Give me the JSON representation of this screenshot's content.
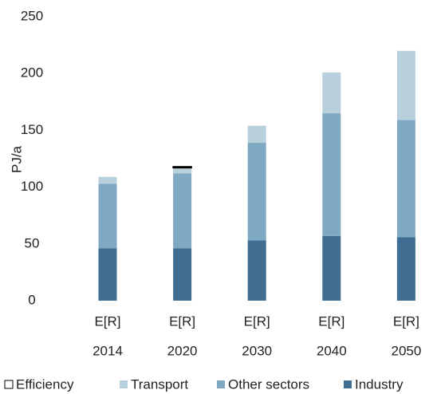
{
  "chart_data": {
    "type": "stacked_bar",
    "y_label": "PJ/a",
    "categories": [
      "2014",
      "2020",
      "2030",
      "2040",
      "2050"
    ],
    "category_sublabels": [
      "E[R]",
      "E[R]",
      "E[R]",
      "E[R]",
      "E[R]"
    ],
    "series": [
      {
        "name": "Industry",
        "color": "#3f6e92",
        "values": [
          46,
          46,
          53,
          57,
          56
        ]
      },
      {
        "name": "Other sectors",
        "color": "#7fa9c2",
        "values": [
          57,
          66,
          86,
          108,
          103
        ]
      },
      {
        "name": "Transport",
        "color": "#b8cfdc",
        "values": [
          6,
          5,
          15,
          36,
          61
        ]
      },
      {
        "name": "Efficiency",
        "color": "#ffffff",
        "values": [
          0,
          1,
          0,
          0,
          0
        ]
      }
    ],
    "ylim": [
      0,
      250
    ],
    "yticks": [
      0,
      50,
      100,
      150,
      200,
      250
    ],
    "grid": false,
    "legend": "bottom"
  }
}
